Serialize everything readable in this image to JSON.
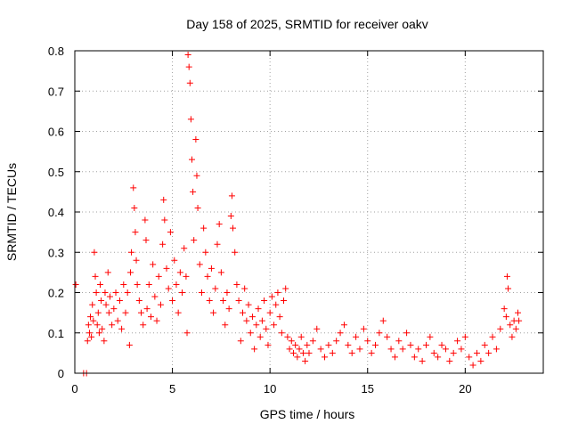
{
  "chart_data": {
    "type": "scatter",
    "title": "Day 158 of 2025, SRMTID for receiver oakv",
    "xlabel": "GPS time / hours",
    "ylabel": "SRMTID / TECUs",
    "xlim": [
      0,
      24
    ],
    "ylim": [
      0,
      0.8
    ],
    "xticks": [
      0,
      5,
      10,
      15,
      20
    ],
    "yticks": [
      0,
      0.1,
      0.2,
      0.3,
      0.4,
      0.5,
      0.6,
      0.7,
      0.8
    ],
    "xtick_labels": [
      "0",
      "5",
      "10",
      "15",
      "20"
    ],
    "ytick_labels": [
      "0",
      "0.1",
      "0.2",
      "0.3",
      "0.4",
      "0.5",
      "0.6",
      "0.7",
      "0.8"
    ],
    "grid": true,
    "marker": "+",
    "color": "#ff0000",
    "series": [
      {
        "name": "SRMTID",
        "points": [
          [
            0.05,
            0.22
          ],
          [
            0.45,
            0.0
          ],
          [
            0.6,
            0.0
          ],
          [
            0.65,
            0.08
          ],
          [
            0.7,
            0.12
          ],
          [
            0.75,
            0.1
          ],
          [
            0.8,
            0.14
          ],
          [
            0.85,
            0.09
          ],
          [
            0.9,
            0.17
          ],
          [
            0.95,
            0.13
          ],
          [
            1.0,
            0.3
          ],
          [
            1.05,
            0.24
          ],
          [
            1.1,
            0.2
          ],
          [
            1.15,
            0.12
          ],
          [
            1.2,
            0.15
          ],
          [
            1.25,
            0.1
          ],
          [
            1.3,
            0.22
          ],
          [
            1.35,
            0.18
          ],
          [
            1.4,
            0.11
          ],
          [
            1.5,
            0.08
          ],
          [
            1.55,
            0.2
          ],
          [
            1.6,
            0.17
          ],
          [
            1.7,
            0.25
          ],
          [
            1.75,
            0.15
          ],
          [
            1.8,
            0.19
          ],
          [
            1.9,
            0.12
          ],
          [
            2.0,
            0.16
          ],
          [
            2.1,
            0.2
          ],
          [
            2.2,
            0.13
          ],
          [
            2.3,
            0.18
          ],
          [
            2.4,
            0.11
          ],
          [
            2.5,
            0.22
          ],
          [
            2.6,
            0.15
          ],
          [
            2.7,
            0.2
          ],
          [
            2.8,
            0.07
          ],
          [
            2.85,
            0.25
          ],
          [
            2.9,
            0.3
          ],
          [
            3.0,
            0.46
          ],
          [
            3.05,
            0.41
          ],
          [
            3.1,
            0.35
          ],
          [
            3.15,
            0.28
          ],
          [
            3.2,
            0.22
          ],
          [
            3.3,
            0.18
          ],
          [
            3.4,
            0.15
          ],
          [
            3.5,
            0.12
          ],
          [
            3.6,
            0.38
          ],
          [
            3.65,
            0.33
          ],
          [
            3.7,
            0.16
          ],
          [
            3.8,
            0.22
          ],
          [
            3.9,
            0.14
          ],
          [
            4.0,
            0.27
          ],
          [
            4.1,
            0.19
          ],
          [
            4.2,
            0.13
          ],
          [
            4.3,
            0.24
          ],
          [
            4.4,
            0.17
          ],
          [
            4.5,
            0.32
          ],
          [
            4.55,
            0.43
          ],
          [
            4.6,
            0.38
          ],
          [
            4.7,
            0.26
          ],
          [
            4.8,
            0.21
          ],
          [
            4.9,
            0.35
          ],
          [
            5.0,
            0.18
          ],
          [
            5.1,
            0.28
          ],
          [
            5.2,
            0.22
          ],
          [
            5.3,
            0.15
          ],
          [
            5.4,
            0.25
          ],
          [
            5.5,
            0.2
          ],
          [
            5.6,
            0.31
          ],
          [
            5.7,
            0.24
          ],
          [
            5.75,
            0.1
          ],
          [
            5.8,
            0.79
          ],
          [
            5.85,
            0.76
          ],
          [
            5.9,
            0.72
          ],
          [
            5.95,
            0.63
          ],
          [
            6.0,
            0.53
          ],
          [
            6.05,
            0.45
          ],
          [
            6.1,
            0.33
          ],
          [
            6.2,
            0.58
          ],
          [
            6.25,
            0.49
          ],
          [
            6.3,
            0.41
          ],
          [
            6.4,
            0.27
          ],
          [
            6.5,
            0.2
          ],
          [
            6.6,
            0.36
          ],
          [
            6.7,
            0.3
          ],
          [
            6.8,
            0.24
          ],
          [
            6.9,
            0.18
          ],
          [
            7.0,
            0.26
          ],
          [
            7.1,
            0.15
          ],
          [
            7.2,
            0.21
          ],
          [
            7.3,
            0.32
          ],
          [
            7.4,
            0.37
          ],
          [
            7.5,
            0.25
          ],
          [
            7.6,
            0.18
          ],
          [
            7.7,
            0.12
          ],
          [
            7.8,
            0.2
          ],
          [
            7.9,
            0.16
          ],
          [
            8.0,
            0.39
          ],
          [
            8.05,
            0.44
          ],
          [
            8.1,
            0.36
          ],
          [
            8.2,
            0.3
          ],
          [
            8.3,
            0.22
          ],
          [
            8.4,
            0.18
          ],
          [
            8.5,
            0.08
          ],
          [
            8.6,
            0.15
          ],
          [
            8.7,
            0.21
          ],
          [
            8.8,
            0.13
          ],
          [
            8.9,
            0.17
          ],
          [
            9.0,
            0.1
          ],
          [
            9.1,
            0.14
          ],
          [
            9.2,
            0.06
          ],
          [
            9.3,
            0.12
          ],
          [
            9.4,
            0.16
          ],
          [
            9.5,
            0.09
          ],
          [
            9.6,
            0.13
          ],
          [
            9.7,
            0.18
          ],
          [
            9.8,
            0.11
          ],
          [
            9.9,
            0.07
          ],
          [
            10.0,
            0.15
          ],
          [
            10.1,
            0.19
          ],
          [
            10.2,
            0.12
          ],
          [
            10.3,
            0.17
          ],
          [
            10.4,
            0.2
          ],
          [
            10.5,
            0.14
          ],
          [
            10.6,
            0.1
          ],
          [
            10.7,
            0.18
          ],
          [
            10.8,
            0.21
          ],
          [
            10.9,
            0.09
          ],
          [
            11.0,
            0.06
          ],
          [
            11.1,
            0.08
          ],
          [
            11.2,
            0.05
          ],
          [
            11.3,
            0.07
          ],
          [
            11.4,
            0.04
          ],
          [
            11.5,
            0.06
          ],
          [
            11.6,
            0.09
          ],
          [
            11.7,
            0.05
          ],
          [
            11.8,
            0.03
          ],
          [
            11.9,
            0.07
          ],
          [
            12.0,
            0.05
          ],
          [
            12.2,
            0.08
          ],
          [
            12.4,
            0.11
          ],
          [
            12.6,
            0.06
          ],
          [
            12.8,
            0.04
          ],
          [
            13.0,
            0.07
          ],
          [
            13.2,
            0.05
          ],
          [
            13.4,
            0.08
          ],
          [
            13.6,
            0.1
          ],
          [
            13.8,
            0.12
          ],
          [
            14.0,
            0.07
          ],
          [
            14.2,
            0.05
          ],
          [
            14.4,
            0.09
          ],
          [
            14.6,
            0.06
          ],
          [
            14.8,
            0.11
          ],
          [
            15.0,
            0.08
          ],
          [
            15.2,
            0.05
          ],
          [
            15.4,
            0.07
          ],
          [
            15.6,
            0.1
          ],
          [
            15.8,
            0.13
          ],
          [
            16.0,
            0.09
          ],
          [
            16.2,
            0.06
          ],
          [
            16.4,
            0.04
          ],
          [
            16.6,
            0.08
          ],
          [
            16.8,
            0.06
          ],
          [
            17.0,
            0.1
          ],
          [
            17.2,
            0.07
          ],
          [
            17.4,
            0.04
          ],
          [
            17.6,
            0.06
          ],
          [
            17.8,
            0.03
          ],
          [
            18.0,
            0.07
          ],
          [
            18.2,
            0.09
          ],
          [
            18.4,
            0.05
          ],
          [
            18.6,
            0.04
          ],
          [
            18.8,
            0.07
          ],
          [
            19.0,
            0.06
          ],
          [
            19.2,
            0.03
          ],
          [
            19.4,
            0.05
          ],
          [
            19.6,
            0.08
          ],
          [
            19.8,
            0.06
          ],
          [
            20.0,
            0.09
          ],
          [
            20.2,
            0.04
          ],
          [
            20.4,
            0.02
          ],
          [
            20.6,
            0.05
          ],
          [
            20.8,
            0.03
          ],
          [
            21.0,
            0.07
          ],
          [
            21.2,
            0.05
          ],
          [
            21.4,
            0.09
          ],
          [
            21.6,
            0.06
          ],
          [
            21.8,
            0.11
          ],
          [
            22.0,
            0.16
          ],
          [
            22.1,
            0.14
          ],
          [
            22.15,
            0.24
          ],
          [
            22.2,
            0.21
          ],
          [
            22.3,
            0.12
          ],
          [
            22.4,
            0.09
          ],
          [
            22.5,
            0.13
          ],
          [
            22.6,
            0.11
          ],
          [
            22.7,
            0.15
          ],
          [
            22.75,
            0.13
          ]
        ]
      }
    ]
  }
}
